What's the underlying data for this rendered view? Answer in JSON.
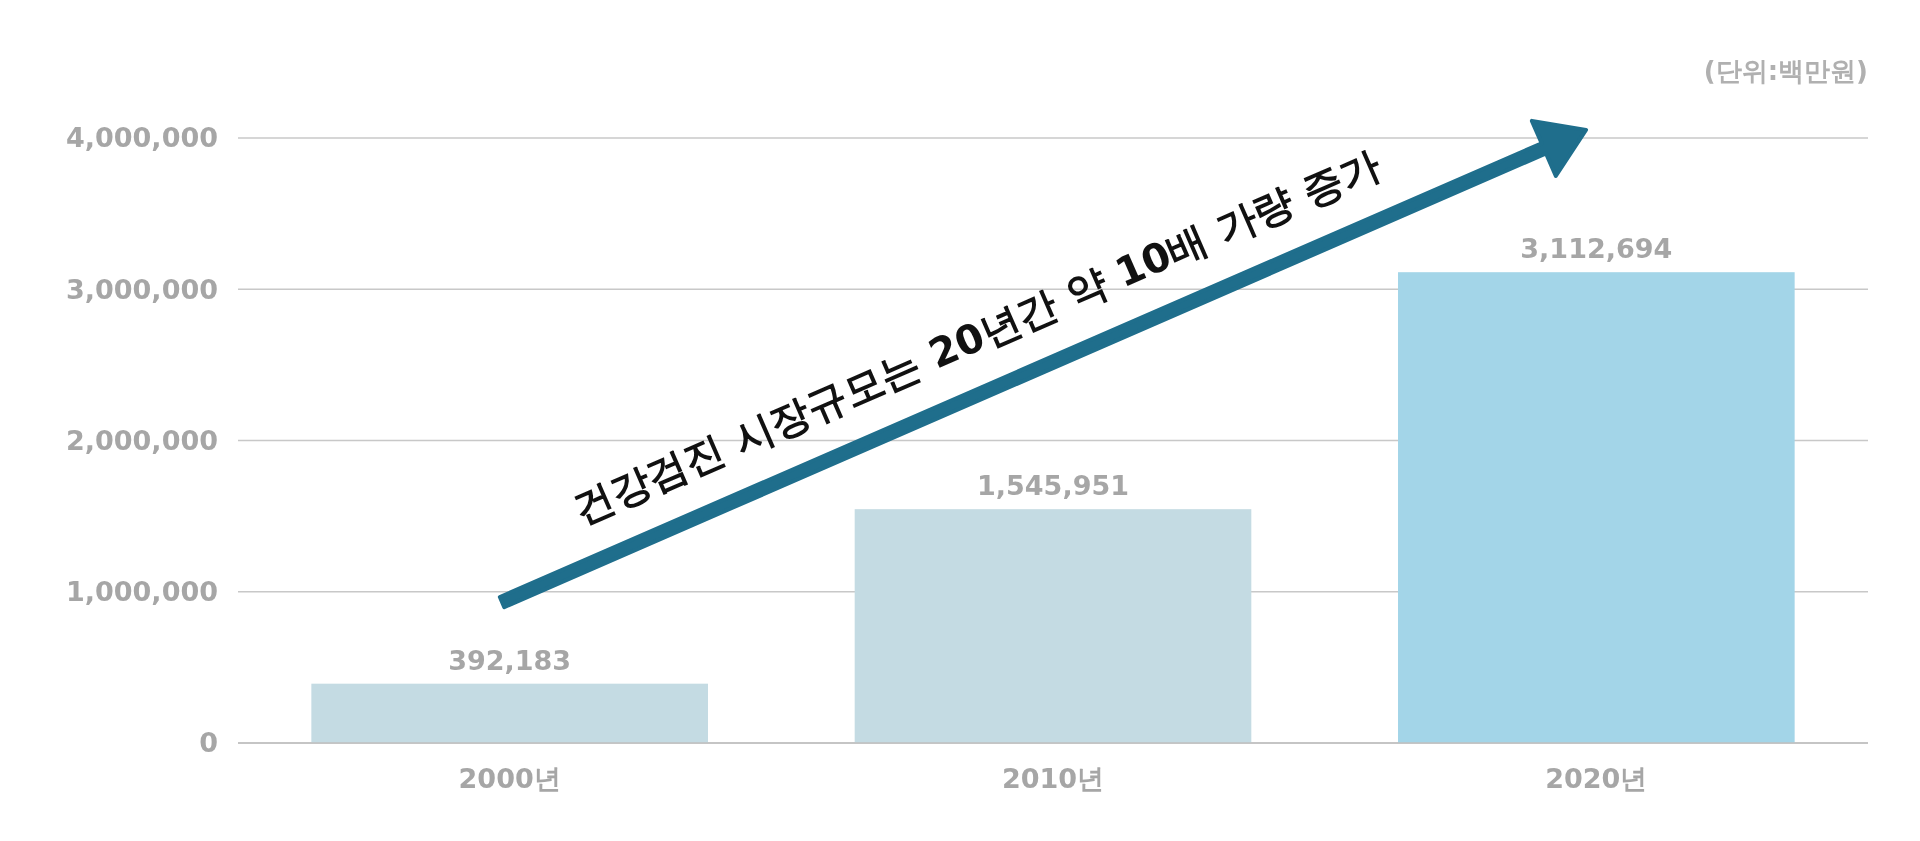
{
  "chart_data": {
    "type": "bar",
    "categories": [
      "2000년",
      "2010년",
      "2020년"
    ],
    "values": [
      392183,
      1545951,
      3112694
    ],
    "colors": [
      "#c4dbe3",
      "#c4dbe3",
      "#a3d5e8"
    ],
    "ylim": [
      0,
      4000000
    ],
    "yticks": [
      {
        "value": 0,
        "label": "0"
      },
      {
        "value": 1000000,
        "label": "1,000,000"
      },
      {
        "value": 2000000,
        "label": "2,000,000"
      },
      {
        "value": 3000000,
        "label": "3,000,000"
      },
      {
        "value": 4000000,
        "label": "4,000,000"
      }
    ],
    "grid": "y",
    "value_labels": [
      "392,183",
      "1,545,951",
      "3,112,694"
    ],
    "annotations": [
      "(단위:백만원)",
      "건강검진 시장규모는 20년간 약 10배 가량 증가"
    ]
  }
}
